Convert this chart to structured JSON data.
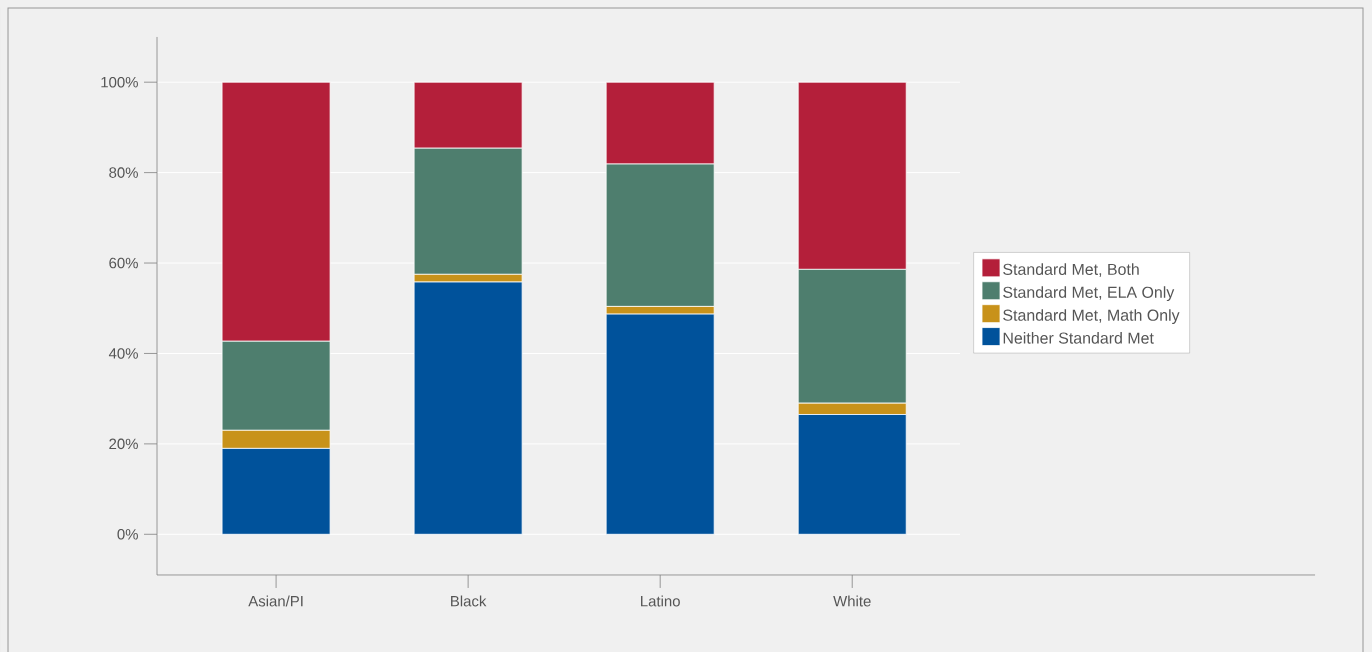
{
  "chart_data": {
    "type": "bar",
    "stacked": true,
    "categories": [
      "Asian/PI",
      "Black",
      "Latino",
      "White"
    ],
    "series": [
      {
        "name": "Neither Standard Met",
        "color": "#00529b",
        "values": [
          19.0,
          55.8,
          48.7,
          26.5
        ]
      },
      {
        "name": "Standard Met, Math Only",
        "color": "#c8921a",
        "values": [
          4.0,
          1.7,
          1.7,
          2.5
        ]
      },
      {
        "name": "Standard Met, ELA Only",
        "color": "#4e7e6e",
        "values": [
          19.7,
          27.9,
          31.5,
          29.6
        ]
      },
      {
        "name": "Standard Met, Both",
        "color": "#b41f3a",
        "values": [
          57.3,
          14.6,
          18.1,
          41.4
        ]
      }
    ],
    "ylim": [
      -9,
      110
    ],
    "yticks": [
      {
        "value": 0,
        "label": "0%"
      },
      {
        "value": 20,
        "label": "20%"
      },
      {
        "value": 40,
        "label": "40%"
      },
      {
        "value": 60,
        "label": "60%"
      },
      {
        "value": 80,
        "label": "80%"
      },
      {
        "value": 100,
        "label": "100%"
      }
    ],
    "grid": "y",
    "legend": "right"
  }
}
